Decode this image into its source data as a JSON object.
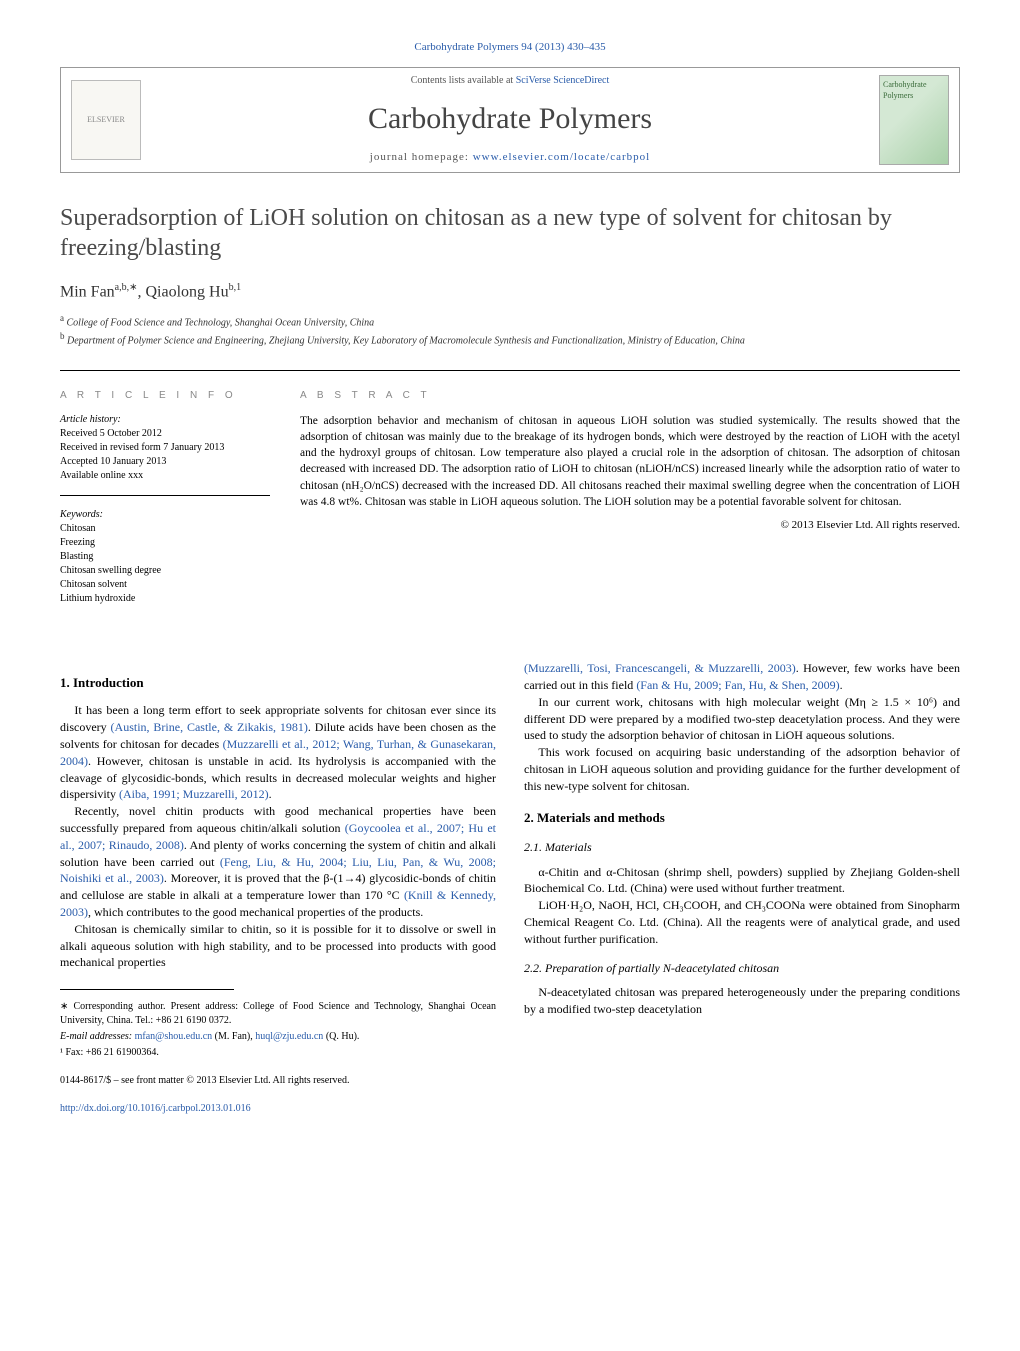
{
  "top_bar": {
    "text": "Carbohydrate Polymers 94 (2013) 430–435",
    "link_color": "#2a5caa"
  },
  "header": {
    "contents_line_prefix": "Contents lists available at ",
    "contents_line_link": "SciVerse ScienceDirect",
    "journal_name": "Carbohydrate Polymers",
    "homepage_prefix": "journal homepage: ",
    "homepage_link": "www.elsevier.com/locate/carbpol",
    "elsevier_label": "ELSEVIER",
    "cover_label": "Carbohydrate Polymers"
  },
  "title": "Superadsorption of LiOH solution on chitosan as a new type of solvent for chitosan by freezing/blasting",
  "authors_html": "Min Fan",
  "author1_sup": "a,b,∗",
  "author_sep": ", ",
  "author2": "Qiaolong Hu",
  "author2_sup": "b,1",
  "affils": {
    "a": "College of Food Science and Technology, Shanghai Ocean University, China",
    "b": "Department of Polymer Science and Engineering, Zhejiang University, Key Laboratory of Macromolecule Synthesis and Functionalization, Ministry of Education, China"
  },
  "info": {
    "heading": "a r t i c l e   i n f o",
    "history_label": "Article history:",
    "received": "Received 5 October 2012",
    "revised": "Received in revised form 7 January 2013",
    "accepted": "Accepted 10 January 2013",
    "online": "Available online xxx",
    "keywords_label": "Keywords:",
    "keywords": [
      "Chitosan",
      "Freezing",
      "Blasting",
      "Chitosan swelling degree",
      "Chitosan solvent",
      "Lithium hydroxide"
    ]
  },
  "abstract": {
    "heading": "a b s t r a c t",
    "text": "The adsorption behavior and mechanism of chitosan in aqueous LiOH solution was studied systemically. The results showed that the adsorption of chitosan was mainly due to the breakage of its hydrogen bonds, which were destroyed by the reaction of LiOH with the acetyl and the hydroxyl groups of chitosan. Low temperature also played a crucial role in the adsorption of chitosan. The adsorption of chitosan decreased with increased DD. The adsorption ratio of LiOH to chitosan (nLiOH/nCS) increased linearly while the adsorption ratio of water to chitosan (nH₂O/nCS) decreased with the increased DD. All chitosans reached their maximal swelling degree when the concentration of LiOH was 4.8 wt%. Chitosan was stable in LiOH aqueous solution. The LiOH solution may be a potential favorable solvent for chitosan.",
    "copyright": "© 2013 Elsevier Ltd. All rights reserved."
  },
  "sections": {
    "intro_heading": "1.  Introduction",
    "intro_p1a": "It has been a long term effort to seek appropriate solvents for chitosan ever since its discovery ",
    "intro_p1_ref1": "(Austin, Brine, Castle, & Zikakis, 1981)",
    "intro_p1b": ". Dilute acids have been chosen as the solvents for chitosan for decades ",
    "intro_p1_ref2": "(Muzzarelli et al., 2012; Wang, Turhan, & Gunasekaran, 2004)",
    "intro_p1c": ". However, chitosan is unstable in acid. Its hydrolysis is accompanied with the cleavage of glycosidic-bonds, which results in decreased molecular weights and higher dispersivity ",
    "intro_p1_ref3": "(Aiba, 1991; Muzzarelli, 2012)",
    "intro_p1d": ".",
    "intro_p2a": "Recently, novel chitin products with good mechanical properties have been successfully prepared from aqueous chitin/alkali solution ",
    "intro_p2_ref1": "(Goycoolea et al., 2007; Hu et al., 2007; Rinaudo, 2008)",
    "intro_p2b": ". And plenty of works concerning the system of chitin and alkali solution have been carried out ",
    "intro_p2_ref2": "(Feng, Liu, & Hu, 2004; Liu, Liu, Pan, & Wu, 2008; Noishiki et al., 2003)",
    "intro_p2c": ". Moreover, it is proved that the β-(1→4) glycosidic-bonds of chitin and cellulose are stable in alkali at a temperature lower than 170 °C ",
    "intro_p2_ref3": "(Knill & Kennedy, 2003)",
    "intro_p2d": ", which contributes to the good mechanical properties of the products.",
    "intro_p3": "Chitosan is chemically similar to chitin, so it is possible for it to dissolve or swell in alkali aqueous solution with high stability, and to be processed into products with good mechanical properties",
    "intro_p3_cont_ref1": "(Muzzarelli, Tosi, Francescangeli, & Muzzarelli, 2003)",
    "intro_p3_cont_a": ". However, few works have been carried out in this field ",
    "intro_p3_cont_ref2": "(Fan & Hu, 2009; Fan, Hu, & Shen, 2009)",
    "intro_p3_cont_b": ".",
    "intro_p4": "In our current work, chitosans with high molecular weight (Mη ≥ 1.5 × 10⁶) and different DD were prepared by a modified two-step deacetylation process. And they were used to study the adsorption behavior of chitosan in LiOH aqueous solutions.",
    "intro_p5": "This work focused on acquiring basic understanding of the adsorption behavior of chitosan in LiOH aqueous solution and providing guidance for the further development of this new-type solvent for chitosan.",
    "mm_heading": "2.  Materials and methods",
    "mat_heading": "2.1.  Materials",
    "mat_p1": "α-Chitin and α-Chitosan (shrimp shell, powders) supplied by Zhejiang Golden-shell Biochemical Co. Ltd. (China) were used without further treatment.",
    "mat_p2": "LiOH·H₂O, NaOH, HCl, CH₃COOH, and CH₃COONa were obtained from Sinopharm Chemical Reagent Co. Ltd. (China). All the reagents were of analytical grade, and used without further purification.",
    "prep_heading": "2.2.  Preparation of partially N-deacetylated chitosan",
    "prep_p1": "N-deacetylated chitosan was prepared heterogeneously under the preparing conditions by a modified two-step deacetylation"
  },
  "footnotes": {
    "corr": "∗ Corresponding author. Present address: College of Food Science and Technology, Shanghai Ocean University, China. Tel.: +86 21 6190 0372.",
    "emails_label": "E-mail addresses: ",
    "email1": "mfan@shou.edu.cn",
    "email1_who": " (M. Fan), ",
    "email2": "huql@zju.edu.cn",
    "email2_who": " (Q. Hu).",
    "fax": "¹ Fax: +86 21 61900364."
  },
  "bottom": {
    "issn": "0144-8617/$ – see front matter © 2013 Elsevier Ltd. All rights reserved.",
    "doi": "http://dx.doi.org/10.1016/j.carbpol.2013.01.016"
  },
  "colors": {
    "link": "#2a5caa",
    "heading_grey": "#888888",
    "text": "#000000",
    "border": "#999999"
  },
  "typography": {
    "title_fontsize": 24,
    "journal_name_fontsize": 30,
    "body_fontsize": 12,
    "info_fontsize": 10,
    "abstract_fontsize": 11.5
  }
}
